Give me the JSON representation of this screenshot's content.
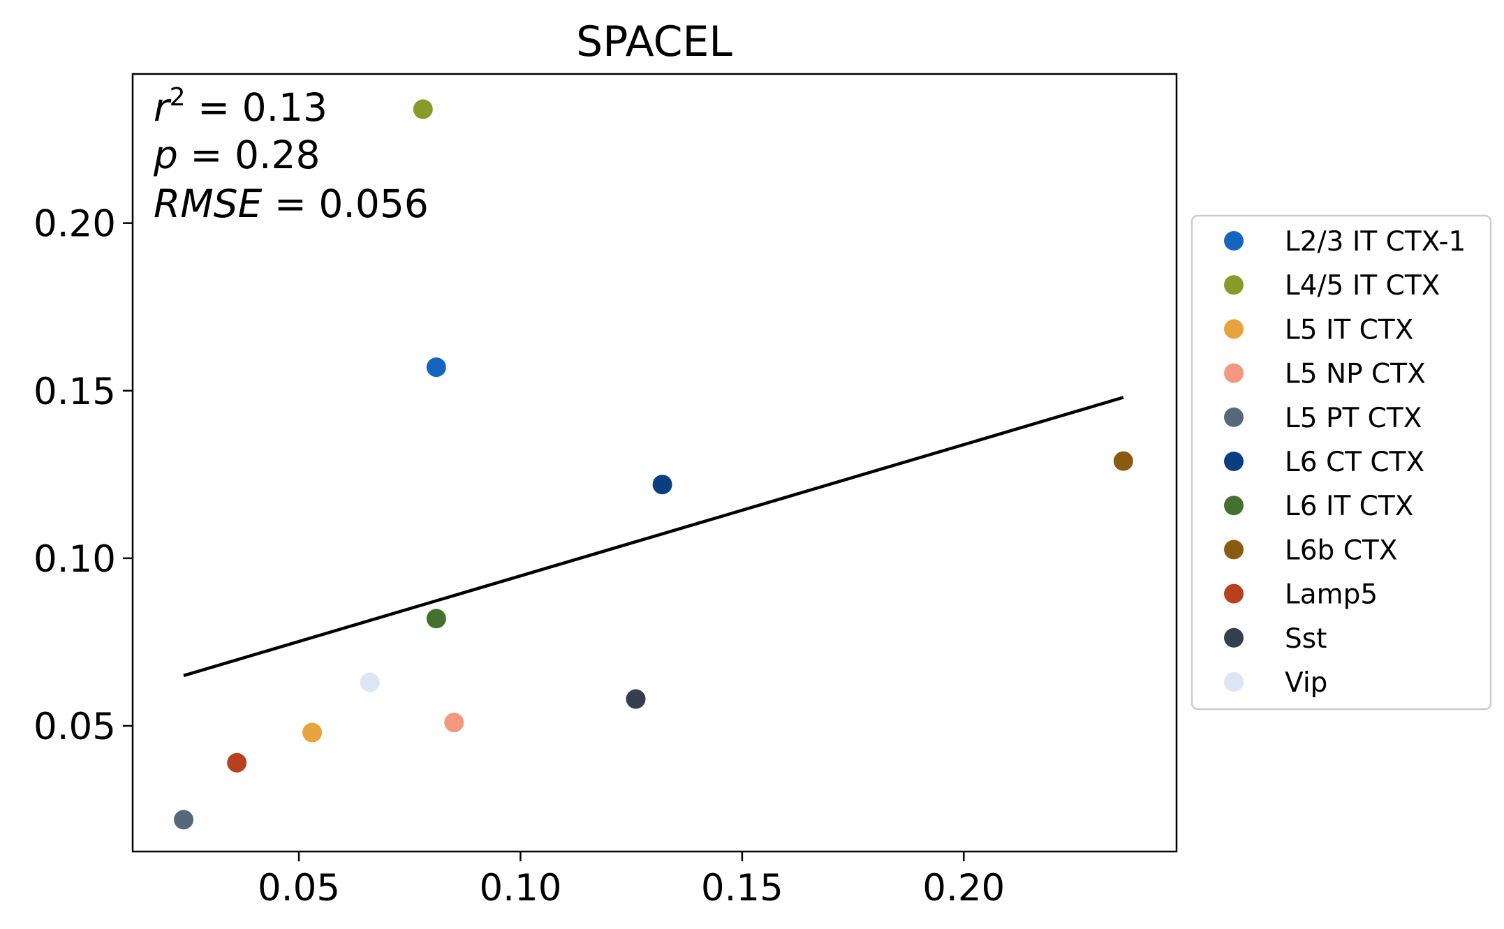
{
  "chart_data": {
    "type": "scatter",
    "title": "SPACEL",
    "xlabel": "",
    "ylabel": "",
    "xlim": [
      0.0125,
      0.248
    ],
    "ylim": [
      0.0125,
      0.2445
    ],
    "xticks": [
      "0.05",
      "0.10",
      "0.15",
      "0.20"
    ],
    "yticks": [
      "0.05",
      "0.10",
      "0.15",
      "0.20"
    ],
    "grid": false,
    "legend_position": "right, outside plot",
    "annotations": {
      "r2_symbol": "r",
      "r2_superscript": "2",
      "r2_value": " = 0.13",
      "p_symbol": "p",
      "p_value": " = 0.28",
      "rmse_symbol": "RMSE",
      "rmse_value": " = 0.056"
    },
    "fit_line": {
      "x": [
        0.024,
        0.236
      ],
      "y": [
        0.065,
        0.148
      ],
      "color": "#000000"
    },
    "points": [
      {
        "name": "L2/3 IT CTX-1",
        "x": 0.081,
        "y": 0.157,
        "color": "#1565c0"
      },
      {
        "name": "L4/5 IT CTX",
        "x": 0.078,
        "y": 0.234,
        "color": "#879a2a"
      },
      {
        "name": "L5 IT CTX",
        "x": 0.053,
        "y": 0.048,
        "color": "#e8a33d"
      },
      {
        "name": "L5 NP CTX",
        "x": 0.085,
        "y": 0.051,
        "color": "#f3987e"
      },
      {
        "name": "L5 PT CTX",
        "x": 0.024,
        "y": 0.022,
        "color": "#566879"
      },
      {
        "name": "L6 CT CTX",
        "x": 0.132,
        "y": 0.122,
        "color": "#073f80"
      },
      {
        "name": "L6 IT CTX",
        "x": 0.081,
        "y": 0.082,
        "color": "#44712e"
      },
      {
        "name": "L6b CTX",
        "x": 0.236,
        "y": 0.129,
        "color": "#8a5a12"
      },
      {
        "name": "Lamp5",
        "x": 0.036,
        "y": 0.039,
        "color": "#b9401f"
      },
      {
        "name": "Sst",
        "x": 0.126,
        "y": 0.058,
        "color": "#363f4f"
      },
      {
        "name": "Vip",
        "x": 0.066,
        "y": 0.063,
        "color": "#dce6f2"
      }
    ]
  }
}
